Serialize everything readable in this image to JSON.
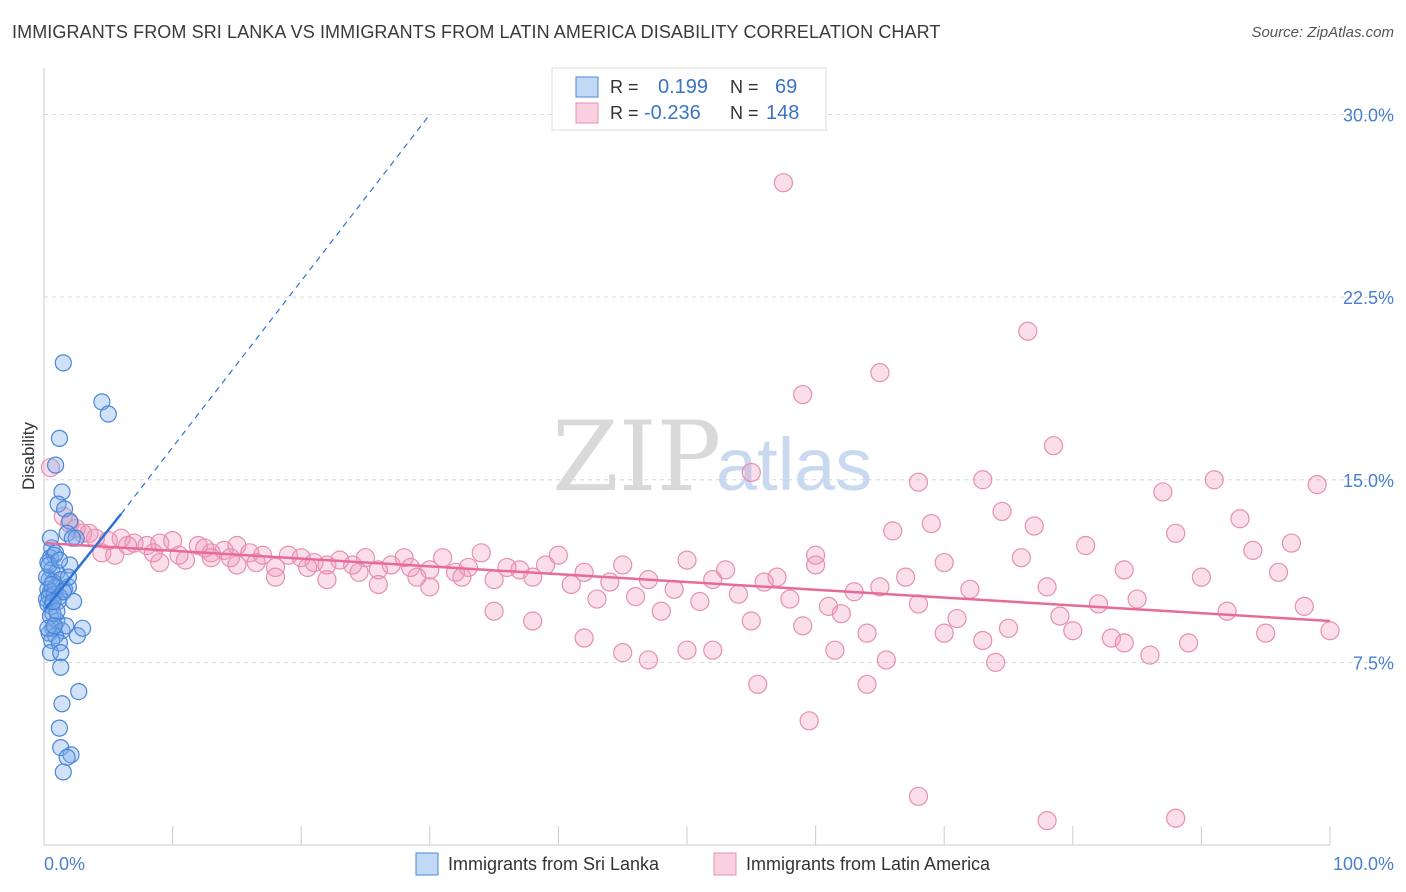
{
  "title": "IMMIGRANTS FROM SRI LANKA VS IMMIGRANTS FROM LATIN AMERICA DISABILITY CORRELATION CHART",
  "source": "Source: ZipAtlas.com",
  "watermark": {
    "zip": "ZIP",
    "atlas": "atlas"
  },
  "legend_top": {
    "rows": [
      {
        "r_label": "R =",
        "r_value": "0.199",
        "n_label": "N =",
        "n_value": "69"
      },
      {
        "r_label": "R =",
        "r_value": "-0.236",
        "n_label": "N =",
        "n_value": "148"
      }
    ]
  },
  "legend_bottom": [
    "Immigrants from Sri Lanka",
    "Immigrants from Latin America"
  ],
  "colors": {
    "series1_fill": "rgba(120,170,235,0.35)",
    "series1_stroke": "#4a86d8",
    "series1_line": "#2f72d6",
    "series2_fill": "rgba(240,150,185,0.30)",
    "series2_stroke": "#e78fb0",
    "series2_line": "#e66b9a",
    "grid": "#d8d8d8",
    "tick_text": "#4a7fcf"
  },
  "chart_data": {
    "type": "scatter",
    "title": "IMMIGRANTS FROM SRI LANKA VS IMMIGRANTS FROM LATIN AMERICA DISABILITY CORRELATION CHART",
    "xlabel": "",
    "ylabel": "Disability",
    "xlim": [
      0,
      100
    ],
    "ylim": [
      0,
      31.5
    ],
    "y_ticks": [
      7.5,
      15.0,
      22.5,
      30.0
    ],
    "y_tick_labels": [
      "7.5%",
      "15.0%",
      "22.5%",
      "30.0%"
    ],
    "x_tick_labels": [
      "0.0%",
      "100.0%"
    ],
    "grid": true,
    "legend_position": "top-center",
    "series": [
      {
        "name": "Immigrants from Sri Lanka",
        "R": 0.199,
        "N": 69,
        "trend": {
          "x": [
            0.1,
            6.0
          ],
          "y": [
            9.7,
            13.6
          ],
          "dashed_to": [
            30.0,
            30.0
          ]
        },
        "points": [
          [
            1.5,
            19.8
          ],
          [
            4.5,
            18.2
          ],
          [
            5.0,
            17.7
          ],
          [
            1.2,
            16.7
          ],
          [
            0.9,
            15.6
          ],
          [
            1.4,
            14.5
          ],
          [
            1.1,
            14.0
          ],
          [
            1.6,
            13.8
          ],
          [
            2.0,
            13.3
          ],
          [
            0.6,
            12.2
          ],
          [
            1.8,
            12.8
          ],
          [
            2.5,
            12.6
          ],
          [
            0.5,
            11.8
          ],
          [
            0.8,
            11.9
          ],
          [
            0.3,
            11.6
          ],
          [
            0.6,
            11.3
          ],
          [
            1.0,
            11.2
          ],
          [
            2.0,
            11.5
          ],
          [
            0.4,
            10.9
          ],
          [
            0.7,
            10.8
          ],
          [
            1.3,
            10.9
          ],
          [
            0.3,
            10.5
          ],
          [
            0.5,
            10.4
          ],
          [
            0.9,
            10.6
          ],
          [
            1.6,
            10.5
          ],
          [
            1.9,
            10.6
          ],
          [
            0.2,
            10.1
          ],
          [
            0.4,
            10.2
          ],
          [
            0.8,
            10.3
          ],
          [
            1.2,
            10.2
          ],
          [
            0.3,
            9.9
          ],
          [
            0.6,
            9.8
          ],
          [
            2.3,
            10.0
          ],
          [
            0.5,
            9.4
          ],
          [
            1.0,
            9.2
          ],
          [
            0.7,
            8.9
          ],
          [
            1.4,
            8.8
          ],
          [
            0.4,
            8.7
          ],
          [
            0.9,
            8.6
          ],
          [
            2.6,
            8.6
          ],
          [
            3.0,
            8.9
          ],
          [
            0.6,
            8.4
          ],
          [
            1.2,
            8.3
          ],
          [
            0.5,
            7.9
          ],
          [
            1.3,
            7.9
          ],
          [
            1.3,
            7.3
          ],
          [
            2.7,
            6.3
          ],
          [
            1.4,
            5.8
          ],
          [
            1.2,
            4.8
          ],
          [
            1.3,
            4.0
          ],
          [
            2.1,
            3.7
          ],
          [
            1.8,
            3.6
          ],
          [
            1.5,
            3.0
          ],
          [
            0.7,
            9.5
          ],
          [
            1.1,
            10.0
          ],
          [
            0.2,
            11.0
          ],
          [
            0.9,
            12.0
          ],
          [
            1.7,
            9.0
          ],
          [
            0.3,
            8.9
          ],
          [
            1.9,
            11.0
          ],
          [
            0.6,
            10.7
          ],
          [
            1.0,
            9.6
          ],
          [
            0.4,
            11.5
          ],
          [
            1.5,
            10.4
          ],
          [
            0.8,
            9.0
          ],
          [
            1.2,
            11.7
          ],
          [
            0.5,
            12.6
          ],
          [
            2.2,
            12.6
          ],
          [
            0.7,
            10.0
          ]
        ]
      },
      {
        "name": "Immigrants from Latin America",
        "R": -0.236,
        "N": 148,
        "trend": {
          "x": [
            0.1,
            100.0
          ],
          "y": [
            12.4,
            9.2
          ]
        },
        "points": [
          [
            0.5,
            15.5
          ],
          [
            1.5,
            13.5
          ],
          [
            2.0,
            13.2
          ],
          [
            3.0,
            12.8
          ],
          [
            4.0,
            12.6
          ],
          [
            5.0,
            12.5
          ],
          [
            6.0,
            12.6
          ],
          [
            7.0,
            12.4
          ],
          [
            8.0,
            12.3
          ],
          [
            9.0,
            12.4
          ],
          [
            10.0,
            12.5
          ],
          [
            11.0,
            11.7
          ],
          [
            12.0,
            12.3
          ],
          [
            13.0,
            12.0
          ],
          [
            14.0,
            12.1
          ],
          [
            15.0,
            12.3
          ],
          [
            16.0,
            12.0
          ],
          [
            17.0,
            11.9
          ],
          [
            18.0,
            11.4
          ],
          [
            19.0,
            11.9
          ],
          [
            20.0,
            11.8
          ],
          [
            21.0,
            11.6
          ],
          [
            22.0,
            11.5
          ],
          [
            23.0,
            11.7
          ],
          [
            24.0,
            11.5
          ],
          [
            25.0,
            11.8
          ],
          [
            26.0,
            11.3
          ],
          [
            27.0,
            11.5
          ],
          [
            28.0,
            11.8
          ],
          [
            29.0,
            11.0
          ],
          [
            30.0,
            11.3
          ],
          [
            31.0,
            11.8
          ],
          [
            32.0,
            11.2
          ],
          [
            33.0,
            11.4
          ],
          [
            34.0,
            12.0
          ],
          [
            35.0,
            10.9
          ],
          [
            36.0,
            11.4
          ],
          [
            37.0,
            11.3
          ],
          [
            38.0,
            11.0
          ],
          [
            39.0,
            11.5
          ],
          [
            40.0,
            11.9
          ],
          [
            41.0,
            10.7
          ],
          [
            42.0,
            11.2
          ],
          [
            43.0,
            10.1
          ],
          [
            44.0,
            10.8
          ],
          [
            45.0,
            11.5
          ],
          [
            46.0,
            10.2
          ],
          [
            47.0,
            10.9
          ],
          [
            48.0,
            9.6
          ],
          [
            49.0,
            10.5
          ],
          [
            50.0,
            11.7
          ],
          [
            51.0,
            10.0
          ],
          [
            52.0,
            10.9
          ],
          [
            53.0,
            11.3
          ],
          [
            54.0,
            10.3
          ],
          [
            55.0,
            9.2
          ],
          [
            56.0,
            10.8
          ],
          [
            57.0,
            11.0
          ],
          [
            58.0,
            10.1
          ],
          [
            59.0,
            9.0
          ],
          [
            60.0,
            11.5
          ],
          [
            61.0,
            9.8
          ],
          [
            62.0,
            9.5
          ],
          [
            63.0,
            10.4
          ],
          [
            64.0,
            8.7
          ],
          [
            65.0,
            10.6
          ],
          [
            66.0,
            12.9
          ],
          [
            67.0,
            11.0
          ],
          [
            68.0,
            9.9
          ],
          [
            69.0,
            13.2
          ],
          [
            70.0,
            11.6
          ],
          [
            71.0,
            9.3
          ],
          [
            72.0,
            10.5
          ],
          [
            73.0,
            8.4
          ],
          [
            74.0,
            7.5
          ],
          [
            75.0,
            8.9
          ],
          [
            76.0,
            11.8
          ],
          [
            77.0,
            13.1
          ],
          [
            78.0,
            10.6
          ],
          [
            79.0,
            9.4
          ],
          [
            80.0,
            8.8
          ],
          [
            81.0,
            12.3
          ],
          [
            82.0,
            9.9
          ],
          [
            83.0,
            8.5
          ],
          [
            84.0,
            11.3
          ],
          [
            85.0,
            10.1
          ],
          [
            86.0,
            7.8
          ],
          [
            87.0,
            14.5
          ],
          [
            88.0,
            12.8
          ],
          [
            89.0,
            8.3
          ],
          [
            90.0,
            11.0
          ],
          [
            91.0,
            15.0
          ],
          [
            92.0,
            9.6
          ],
          [
            93.0,
            13.4
          ],
          [
            94.0,
            12.1
          ],
          [
            95.0,
            8.7
          ],
          [
            96.0,
            11.2
          ],
          [
            97.0,
            12.4
          ],
          [
            98.0,
            9.8
          ],
          [
            99.0,
            14.8
          ],
          [
            100.0,
            8.8
          ],
          [
            57.5,
            27.2
          ],
          [
            76.5,
            21.1
          ],
          [
            65.0,
            19.4
          ],
          [
            59.0,
            18.5
          ],
          [
            78.5,
            16.4
          ],
          [
            55.0,
            15.3
          ],
          [
            68.0,
            14.9
          ],
          [
            73.0,
            15.0
          ],
          [
            74.5,
            13.7
          ],
          [
            60.0,
            11.9
          ],
          [
            61.5,
            8.0
          ],
          [
            65.5,
            7.6
          ],
          [
            55.5,
            6.6
          ],
          [
            59.5,
            5.1
          ],
          [
            64.0,
            6.6
          ],
          [
            68.0,
            2.0
          ],
          [
            78.0,
            1.0
          ],
          [
            88.0,
            1.1
          ],
          [
            84.0,
            8.3
          ],
          [
            70.0,
            8.7
          ],
          [
            45.0,
            7.9
          ],
          [
            47.0,
            7.6
          ],
          [
            50.0,
            8.0
          ],
          [
            52.0,
            8.0
          ],
          [
            42.0,
            8.5
          ],
          [
            38.0,
            9.2
          ],
          [
            35.0,
            9.6
          ],
          [
            30.0,
            10.6
          ],
          [
            26.0,
            10.7
          ],
          [
            22.0,
            10.9
          ],
          [
            18.0,
            11.0
          ],
          [
            15.0,
            11.5
          ],
          [
            13.0,
            11.8
          ],
          [
            9.0,
            11.6
          ],
          [
            6.5,
            12.3
          ],
          [
            4.5,
            12.0
          ],
          [
            3.5,
            12.8
          ],
          [
            2.5,
            13.0
          ],
          [
            5.5,
            11.9
          ],
          [
            8.5,
            12.0
          ],
          [
            10.5,
            11.9
          ],
          [
            12.5,
            12.2
          ],
          [
            14.5,
            11.8
          ],
          [
            16.5,
            11.6
          ],
          [
            20.5,
            11.4
          ],
          [
            24.5,
            11.2
          ],
          [
            28.5,
            11.4
          ],
          [
            32.5,
            11.0
          ]
        ]
      }
    ]
  }
}
